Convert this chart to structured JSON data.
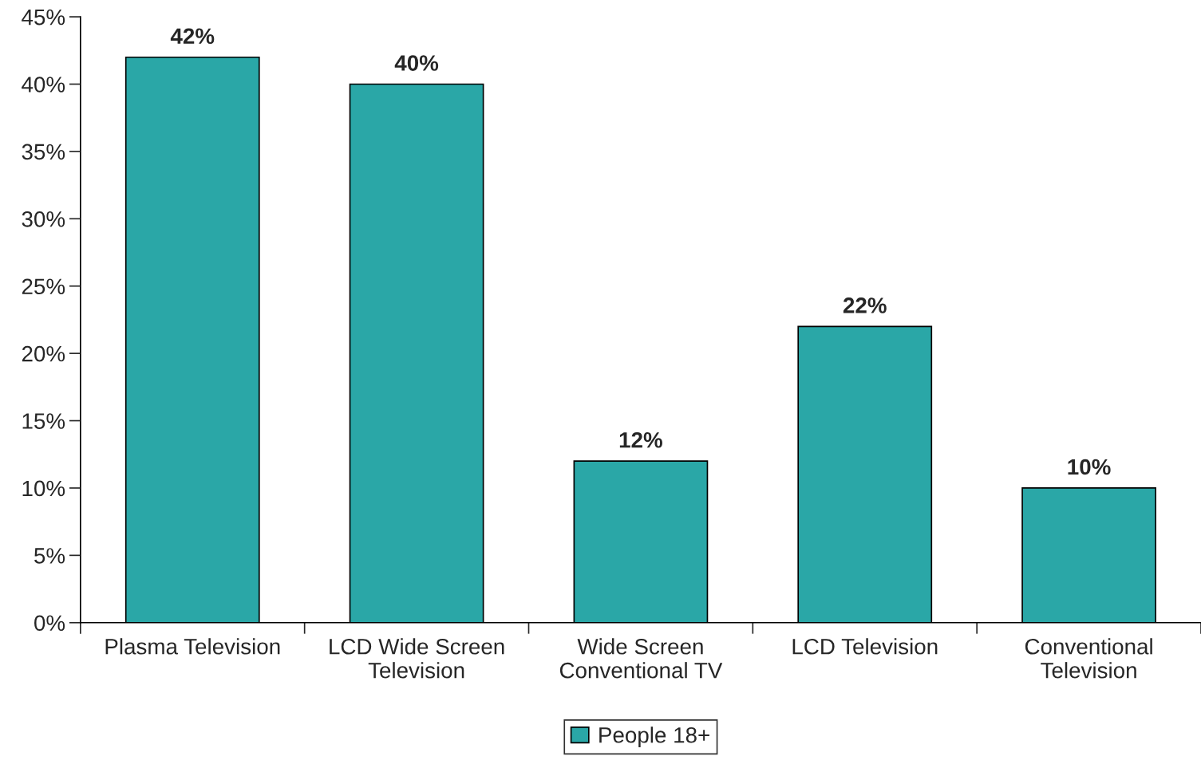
{
  "chart_data": {
    "type": "bar",
    "categories": [
      "Plasma Television",
      "LCD Wide Screen\nTelevision",
      "Wide Screen\nConventional TV",
      "LCD Television",
      "Conventional\nTelevision"
    ],
    "series": [
      {
        "name": "People 18+",
        "color": "#2aa7a7",
        "values": [
          42,
          40,
          12,
          22,
          10
        ],
        "value_labels": [
          "42%",
          "40%",
          "12%",
          "22%",
          "10%"
        ]
      }
    ],
    "ylim": [
      0,
      45
    ],
    "yticks": [
      {
        "value": 0,
        "label": "0%"
      },
      {
        "value": 5,
        "label": "5%"
      },
      {
        "value": 10,
        "label": "10%"
      },
      {
        "value": 15,
        "label": "15%"
      },
      {
        "value": 20,
        "label": "20%"
      },
      {
        "value": 25,
        "label": "25%"
      },
      {
        "value": 30,
        "label": "30%"
      },
      {
        "value": 35,
        "label": "35%"
      },
      {
        "value": 40,
        "label": "40%"
      },
      {
        "value": 45,
        "label": "45%"
      }
    ],
    "grid": false,
    "legend": "bottom"
  }
}
